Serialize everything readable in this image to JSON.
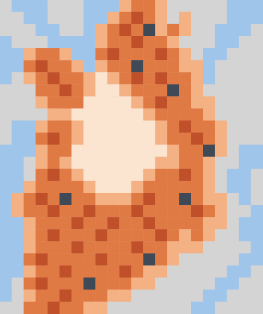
{
  "chart_data": {
    "type": "heatmap",
    "tick_labels": false,
    "colors": [
      "#d4d4d4",
      "#9fc5ea",
      "#fbe5d0",
      "#f4b183",
      "#e07a45",
      "#c0502a",
      "#3f4a56"
    ],
    "cells": [
      [
        0,
        1,
        1,
        1,
        0,
        0,
        0,
        1,
        1,
        1,
        3,
        4,
        4,
        3,
        0,
        0,
        0,
        0,
        0,
        1,
        1,
        1
      ],
      [
        0,
        0,
        1,
        1,
        0,
        0,
        0,
        1,
        1,
        3,
        4,
        5,
        4,
        3,
        0,
        3,
        0,
        0,
        0,
        1,
        1,
        1
      ],
      [
        0,
        0,
        0,
        1,
        1,
        0,
        0,
        1,
        3,
        4,
        5,
        4,
        6,
        3,
        4,
        3,
        0,
        0,
        1,
        1,
        1,
        0
      ],
      [
        1,
        0,
        0,
        0,
        1,
        1,
        1,
        1,
        3,
        4,
        4,
        5,
        4,
        4,
        3,
        0,
        0,
        0,
        1,
        1,
        0,
        0
      ],
      [
        1,
        1,
        3,
        4,
        4,
        3,
        1,
        1,
        4,
        5,
        4,
        4,
        4,
        5,
        4,
        3,
        0,
        1,
        1,
        0,
        0,
        0
      ],
      [
        1,
        1,
        4,
        5,
        4,
        4,
        3,
        1,
        3,
        4,
        4,
        6,
        4,
        4,
        4,
        3,
        3,
        1,
        0,
        0,
        0,
        0
      ],
      [
        1,
        0,
        3,
        4,
        5,
        4,
        4,
        3,
        2,
        3,
        4,
        5,
        4,
        5,
        4,
        4,
        3,
        1,
        0,
        0,
        0,
        0
      ],
      [
        0,
        0,
        0,
        4,
        4,
        5,
        4,
        3,
        2,
        2,
        3,
        4,
        4,
        4,
        6,
        4,
        3,
        0,
        0,
        0,
        0,
        0
      ],
      [
        0,
        0,
        0,
        3,
        4,
        4,
        4,
        2,
        2,
        2,
        2,
        3,
        4,
        5,
        4,
        4,
        3,
        3,
        0,
        0,
        0,
        0
      ],
      [
        0,
        0,
        0,
        0,
        3,
        3,
        2,
        2,
        2,
        2,
        2,
        2,
        3,
        4,
        4,
        4,
        4,
        3,
        0,
        0,
        0,
        0
      ],
      [
        0,
        1,
        1,
        3,
        4,
        4,
        3,
        2,
        2,
        2,
        2,
        2,
        2,
        3,
        4,
        5,
        4,
        4,
        3,
        0,
        0,
        0
      ],
      [
        0,
        1,
        1,
        4,
        5,
        4,
        3,
        2,
        2,
        2,
        2,
        2,
        2,
        3,
        4,
        4,
        5,
        4,
        3,
        0,
        0,
        0
      ],
      [
        1,
        1,
        1,
        3,
        4,
        4,
        2,
        2,
        2,
        2,
        2,
        2,
        2,
        2,
        3,
        4,
        4,
        6,
        3,
        0,
        1,
        1
      ],
      [
        1,
        1,
        0,
        3,
        4,
        3,
        2,
        2,
        2,
        2,
        2,
        2,
        2,
        3,
        3,
        4,
        4,
        3,
        0,
        0,
        1,
        1
      ],
      [
        1,
        1,
        0,
        4,
        5,
        4,
        3,
        2,
        2,
        2,
        2,
        2,
        3,
        4,
        4,
        5,
        4,
        3,
        0,
        1,
        1,
        0
      ],
      [
        1,
        1,
        3,
        4,
        4,
        4,
        4,
        3,
        2,
        2,
        2,
        3,
        4,
        4,
        4,
        4,
        4,
        3,
        0,
        1,
        1,
        0
      ],
      [
        1,
        3,
        4,
        5,
        4,
        6,
        4,
        4,
        3,
        3,
        3,
        4,
        5,
        4,
        4,
        6,
        4,
        3,
        3,
        0,
        1,
        0
      ],
      [
        1,
        3,
        4,
        4,
        5,
        4,
        4,
        5,
        4,
        4,
        4,
        5,
        4,
        4,
        4,
        4,
        5,
        4,
        3,
        0,
        0,
        1
      ],
      [
        1,
        1,
        3,
        4,
        4,
        4,
        5,
        4,
        4,
        5,
        4,
        4,
        5,
        4,
        4,
        4,
        4,
        3,
        3,
        0,
        1,
        1
      ],
      [
        1,
        1,
        3,
        4,
        5,
        4,
        4,
        4,
        5,
        4,
        4,
        4,
        4,
        5,
        4,
        3,
        4,
        3,
        0,
        0,
        1,
        1
      ],
      [
        1,
        1,
        3,
        4,
        4,
        4,
        5,
        4,
        4,
        4,
        4,
        5,
        4,
        4,
        3,
        3,
        3,
        0,
        0,
        0,
        0,
        1
      ],
      [
        1,
        1,
        4,
        5,
        4,
        4,
        4,
        4,
        5,
        4,
        4,
        4,
        6,
        4,
        3,
        0,
        0,
        0,
        0,
        0,
        1,
        1
      ],
      [
        1,
        1,
        3,
        4,
        4,
        5,
        4,
        4,
        4,
        4,
        5,
        4,
        3,
        3,
        0,
        0,
        0,
        0,
        0,
        1,
        1,
        0
      ],
      [
        1,
        0,
        4,
        5,
        4,
        4,
        4,
        6,
        4,
        4,
        4,
        3,
        3,
        0,
        0,
        0,
        0,
        0,
        1,
        1,
        0,
        0
      ],
      [
        1,
        0,
        3,
        4,
        4,
        5,
        4,
        4,
        4,
        3,
        3,
        0,
        0,
        0,
        0,
        0,
        0,
        1,
        1,
        0,
        0,
        0
      ],
      [
        0,
        0,
        4,
        4,
        5,
        4,
        4,
        3,
        3,
        0,
        0,
        0,
        0,
        0,
        0,
        0,
        1,
        1,
        0,
        0,
        0,
        0
      ]
    ]
  }
}
